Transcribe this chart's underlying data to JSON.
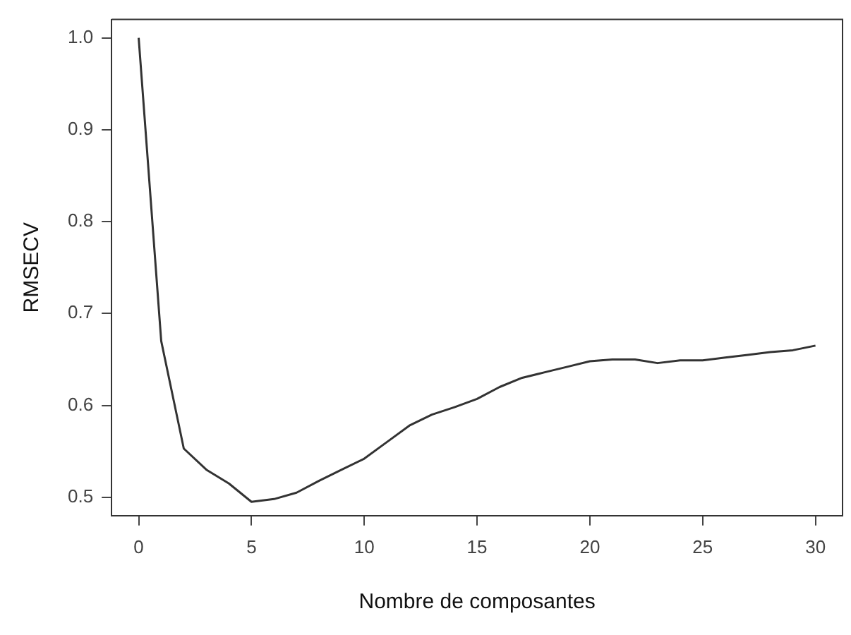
{
  "chart_data": {
    "type": "line",
    "xlabel": "Nombre de composantes",
    "ylabel": "RMSECV",
    "x": [
      0,
      1,
      2,
      3,
      4,
      5,
      6,
      7,
      8,
      9,
      10,
      11,
      12,
      13,
      14,
      15,
      16,
      17,
      18,
      19,
      20,
      21,
      22,
      23,
      24,
      25,
      26,
      27,
      28,
      29,
      30
    ],
    "series": [
      {
        "color": "#333333",
        "values": [
          1.0,
          0.67,
          0.553,
          0.53,
          0.515,
          0.495,
          0.498,
          0.505,
          0.518,
          0.53,
          0.542,
          0.56,
          0.578,
          0.59,
          0.598,
          0.607,
          0.62,
          0.63,
          0.636,
          0.642,
          0.648,
          0.65,
          0.65,
          0.646,
          0.649,
          0.649,
          0.652,
          0.655,
          0.658,
          0.66,
          0.665
        ]
      }
    ],
    "xlim": [
      -1.2,
      31.2
    ],
    "ylim": [
      0.48,
      1.02
    ],
    "xticks": [
      0,
      5,
      10,
      15,
      20,
      25,
      30
    ],
    "yticks": [
      0.5,
      0.6,
      0.7,
      0.8,
      0.9,
      {
        "value": 1,
        "label": "1.0"
      }
    ],
    "grid": false,
    "legend": false,
    "marker": "none",
    "line_style": "solid"
  }
}
